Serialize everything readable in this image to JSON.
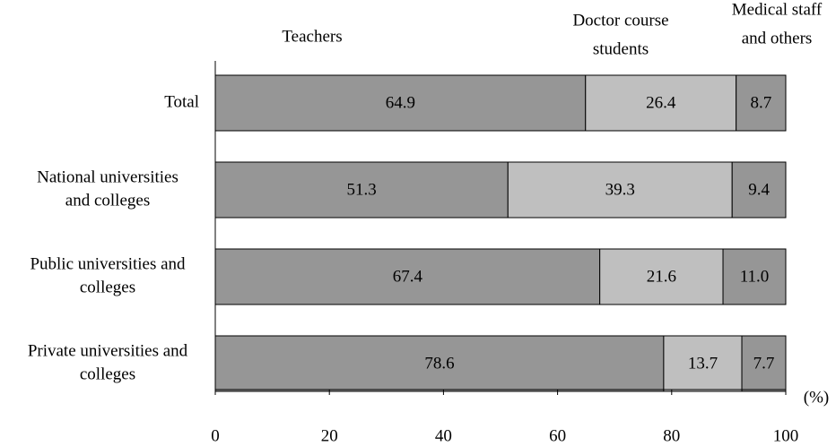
{
  "chart_data": {
    "type": "bar",
    "orientation": "horizontal",
    "stacked": true,
    "categories": [
      "Total",
      "National universities and colleges",
      "Public universities and colleges",
      "Private universities and colleges"
    ],
    "category_lines": [
      [
        "Total"
      ],
      [
        "National universities",
        "and colleges"
      ],
      [
        "Public universities and",
        "colleges"
      ],
      [
        "Private universities and",
        "colleges"
      ]
    ],
    "series": [
      {
        "name": "Teachers",
        "name_lines": [
          "Teachers"
        ],
        "color": "#969696",
        "values": [
          64.9,
          51.3,
          67.4,
          78.6
        ],
        "labels": [
          "64.9",
          "51.3",
          "67.4",
          "78.6"
        ]
      },
      {
        "name": "Doctor course students",
        "name_lines": [
          "Doctor course",
          "students"
        ],
        "color": "#bfbfbf",
        "values": [
          26.4,
          39.3,
          21.6,
          13.7
        ],
        "labels": [
          "26.4",
          "39.3",
          "21.6",
          "13.7"
        ]
      },
      {
        "name": "Medical staff and others",
        "name_lines": [
          "Medical staff",
          "and others"
        ],
        "color": "#969696",
        "values": [
          8.7,
          9.4,
          11.0,
          7.7
        ],
        "labels": [
          "8.7",
          "9.4",
          "11.0",
          "7.7"
        ]
      }
    ],
    "xlim": [
      0,
      100
    ],
    "xticks": [
      "0",
      "20",
      "40",
      "60",
      "80",
      "100"
    ],
    "xunit": "(%)",
    "title": "",
    "xlabel": "",
    "ylabel": "",
    "grid": false,
    "legend": "top"
  }
}
